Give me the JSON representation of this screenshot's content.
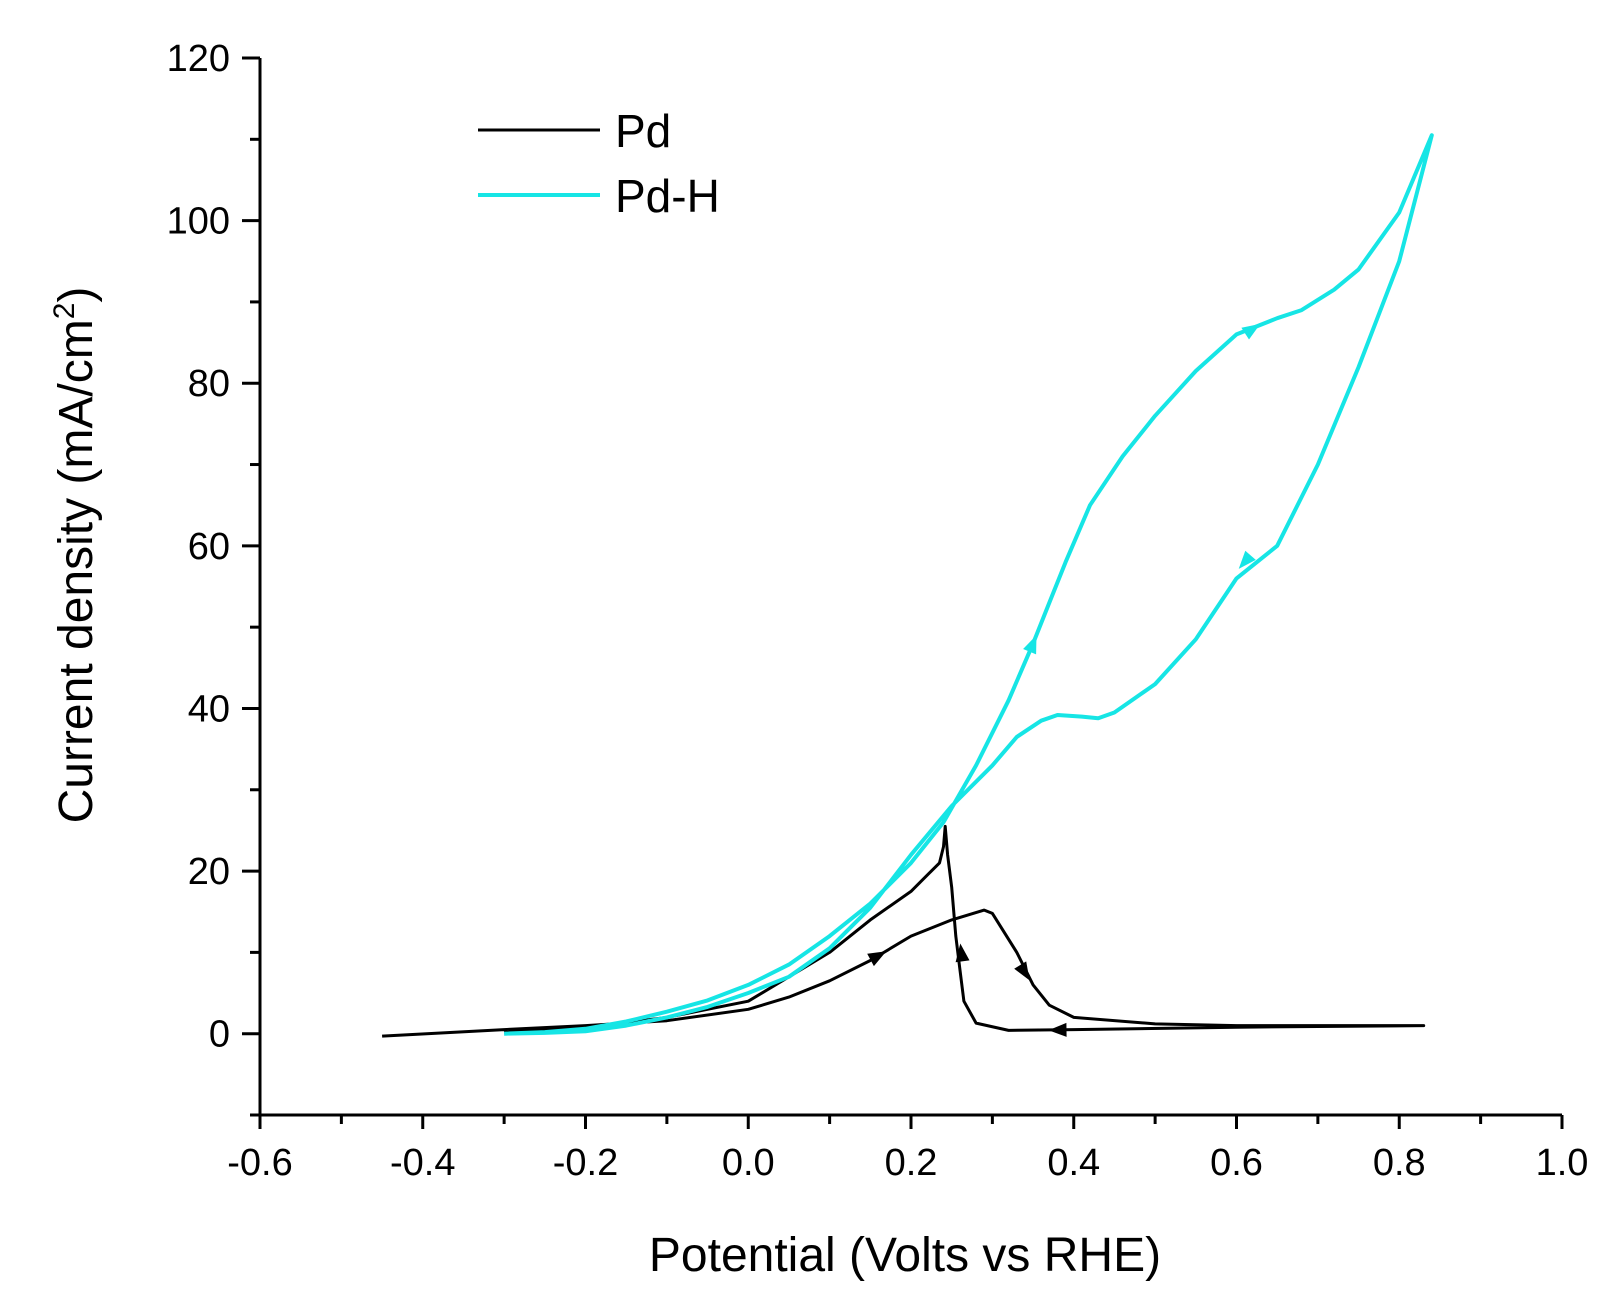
{
  "chart_data": {
    "type": "line",
    "title": "",
    "xlabel": "Potential (Volts vs RHE)",
    "ylabel_main": "Current density (mA/cm",
    "ylabel_sup": "2",
    "ylabel_close": ")",
    "xlim": [
      -0.6,
      1.0
    ],
    "ylim": [
      -10,
      120
    ],
    "x_ticks": [
      -0.6,
      -0.4,
      -0.2,
      0.0,
      0.2,
      0.4,
      0.6,
      0.8,
      1.0
    ],
    "x_tick_labels": [
      "-0.6",
      "-0.4",
      "-0.2",
      "0.0",
      "0.2",
      "0.4",
      "0.6",
      "0.8",
      "1.0"
    ],
    "y_ticks": [
      0,
      20,
      40,
      60,
      80,
      100,
      120
    ],
    "y_tick_labels": [
      "0",
      "20",
      "40",
      "60",
      "80",
      "100",
      "120"
    ],
    "legend_position": "top-left",
    "series": [
      {
        "name": "Pd",
        "color": "#000000",
        "points": [
          [
            -0.45,
            -0.3
          ],
          [
            -0.3,
            0.5
          ],
          [
            -0.2,
            1.0
          ],
          [
            -0.1,
            1.6
          ],
          [
            0.0,
            3.0
          ],
          [
            0.05,
            4.5
          ],
          [
            0.1,
            6.5
          ],
          [
            0.15,
            9.0
          ],
          [
            0.2,
            12.0
          ],
          [
            0.25,
            14.0
          ],
          [
            0.29,
            15.2
          ],
          [
            0.3,
            14.8
          ],
          [
            0.33,
            10.0
          ],
          [
            0.35,
            6.0
          ],
          [
            0.37,
            3.5
          ],
          [
            0.4,
            2.0
          ],
          [
            0.5,
            1.2
          ],
          [
            0.6,
            1.0
          ],
          [
            0.7,
            1.0
          ],
          [
            0.83,
            1.0
          ],
          [
            0.6,
            0.8
          ],
          [
            0.4,
            0.5
          ],
          [
            0.32,
            0.4
          ],
          [
            0.28,
            1.3
          ],
          [
            0.265,
            4.0
          ],
          [
            0.26,
            8.0
          ],
          [
            0.255,
            12.0
          ],
          [
            0.25,
            18.0
          ],
          [
            0.245,
            22.0
          ],
          [
            0.242,
            25.5
          ],
          [
            0.24,
            23.0
          ],
          [
            0.235,
            21.0
          ],
          [
            0.22,
            19.5
          ],
          [
            0.2,
            17.5
          ],
          [
            0.15,
            14.0
          ],
          [
            0.1,
            10.0
          ],
          [
            0.05,
            7.0
          ],
          [
            0.0,
            4.0
          ],
          [
            -0.1,
            2.0
          ],
          [
            -0.2,
            0.7
          ],
          [
            -0.3,
            0.2
          ]
        ],
        "arrows": [
          {
            "x": 0.16,
            "y": 9.6,
            "dir": "forward"
          },
          {
            "x": 0.34,
            "y": 7.5,
            "dir": "forward"
          },
          {
            "x": 0.38,
            "y": 0.45,
            "dir": "forward"
          },
          {
            "x": 0.262,
            "y": 10.0,
            "dir": "forward"
          }
        ]
      },
      {
        "name": "Pd-H",
        "color": "#16e5e5",
        "points": [
          [
            -0.3,
            0.0
          ],
          [
            -0.25,
            0.2
          ],
          [
            -0.2,
            0.6
          ],
          [
            -0.15,
            1.5
          ],
          [
            -0.1,
            2.7
          ],
          [
            -0.05,
            4.1
          ],
          [
            0.0,
            6.0
          ],
          [
            0.05,
            8.5
          ],
          [
            0.1,
            12.0
          ],
          [
            0.15,
            16.0
          ],
          [
            0.2,
            21.0
          ],
          [
            0.24,
            26.0
          ],
          [
            0.28,
            33.0
          ],
          [
            0.32,
            41.0
          ],
          [
            0.35,
            48.0
          ],
          [
            0.37,
            53.0
          ],
          [
            0.39,
            58.0
          ],
          [
            0.42,
            65.0
          ],
          [
            0.46,
            71.0
          ],
          [
            0.5,
            76.0
          ],
          [
            0.55,
            81.5
          ],
          [
            0.6,
            86.0
          ],
          [
            0.65,
            88.0
          ],
          [
            0.68,
            89.0
          ],
          [
            0.72,
            91.5
          ],
          [
            0.75,
            94.0
          ],
          [
            0.8,
            101.0
          ],
          [
            0.84,
            110.5
          ],
          [
            0.8,
            95.0
          ],
          [
            0.75,
            82.0
          ],
          [
            0.7,
            70.0
          ],
          [
            0.65,
            60.0
          ],
          [
            0.6,
            56.0
          ],
          [
            0.55,
            48.5
          ],
          [
            0.5,
            43.0
          ],
          [
            0.45,
            39.5
          ],
          [
            0.43,
            38.8
          ],
          [
            0.41,
            39.0
          ],
          [
            0.38,
            39.2
          ],
          [
            0.36,
            38.5
          ],
          [
            0.33,
            36.5
          ],
          [
            0.3,
            33.0
          ],
          [
            0.25,
            28.0
          ],
          [
            0.2,
            22.0
          ],
          [
            0.15,
            15.5
          ],
          [
            0.1,
            10.5
          ],
          [
            0.05,
            7.0
          ],
          [
            0.0,
            5.0
          ],
          [
            -0.05,
            3.3
          ],
          [
            -0.1,
            2.0
          ],
          [
            -0.15,
            1.0
          ],
          [
            -0.2,
            0.3
          ],
          [
            -0.25,
            0.1
          ],
          [
            -0.3,
            0.0
          ]
        ],
        "arrows": [
          {
            "x": 0.35,
            "y": 48.0,
            "dir": "forward"
          },
          {
            "x": 0.62,
            "y": 86.7,
            "dir": "forward"
          },
          {
            "x": 0.61,
            "y": 58.0,
            "dir": "forward"
          }
        ]
      }
    ]
  }
}
